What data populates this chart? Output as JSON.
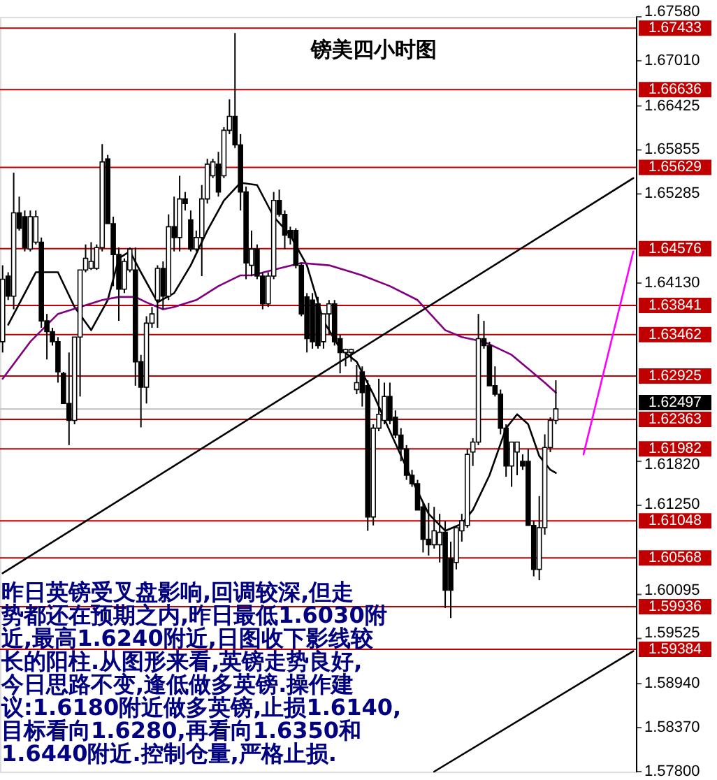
{
  "chart_data": {
    "type": "candlestick",
    "title": "镑美四小时图",
    "categories": [
      null,
      null,
      null,
      null,
      null,
      null,
      null,
      null,
      null,
      null,
      null,
      null,
      null,
      null,
      null,
      null,
      null,
      null,
      null,
      null,
      null,
      null,
      null,
      null,
      null,
      null,
      null,
      null,
      null,
      null,
      null,
      null,
      null,
      null,
      null,
      null,
      null,
      null,
      null,
      null,
      null,
      null,
      null,
      null,
      null,
      null,
      null,
      null,
      null,
      null,
      null,
      null,
      null,
      null,
      null,
      null,
      null,
      null,
      null,
      null,
      null,
      null,
      null,
      null,
      null,
      null,
      null,
      null,
      null,
      null,
      null,
      null,
      null,
      null,
      null,
      null,
      null,
      null,
      null,
      null,
      null,
      null,
      null,
      null,
      null,
      null,
      null,
      null,
      null,
      null,
      null,
      null,
      null,
      null,
      null,
      null,
      null,
      null,
      null,
      null,
      null,
      null,
      null,
      null,
      null,
      null,
      null,
      null,
      null,
      null,
      null,
      null,
      null,
      null,
      null
    ],
    "ohlc": [
      [
        1.6337,
        1.6436,
        1.6323,
        1.6418
      ],
      [
        1.6422,
        1.6427,
        1.6391,
        1.6396
      ],
      [
        1.6396,
        1.6556,
        1.6379,
        1.6504
      ],
      [
        1.6504,
        1.6525,
        1.6481,
        1.6484
      ],
      [
        1.6499,
        1.6507,
        1.6454,
        1.6459
      ],
      [
        1.6457,
        1.6507,
        1.6454,
        1.6499
      ],
      [
        1.6466,
        1.6507,
        1.6463,
        1.6499
      ],
      [
        1.6466,
        1.6472,
        1.6355,
        1.6364
      ],
      [
        1.6364,
        1.6373,
        1.6314,
        1.635
      ],
      [
        1.635,
        1.6355,
        1.6332,
        1.6337
      ],
      [
        1.6337,
        1.6343,
        1.6284,
        1.6298
      ],
      [
        1.6296,
        1.6298,
        1.6257,
        1.6257
      ],
      [
        1.6257,
        1.6323,
        1.6203,
        1.6235
      ],
      [
        1.6235,
        1.6343,
        1.623,
        1.6343
      ],
      [
        1.6343,
        1.643,
        1.6266,
        1.643
      ],
      [
        1.643,
        1.6463,
        1.6427,
        1.6445
      ],
      [
        1.6432,
        1.6466,
        1.643,
        1.6441
      ],
      [
        1.6432,
        1.6463,
        1.643,
        1.6459
      ],
      [
        1.6459,
        1.6593,
        1.6454,
        1.657
      ],
      [
        1.6574,
        1.6579,
        1.649,
        1.649
      ],
      [
        1.649,
        1.6499,
        1.6409,
        1.645
      ],
      [
        1.645,
        1.6459,
        1.6364,
        1.6405
      ],
      [
        1.6405,
        1.6445,
        1.64,
        1.6441
      ],
      [
        1.643,
        1.6459,
        1.6427,
        1.6457
      ],
      [
        1.643,
        1.6459,
        1.628,
        1.6311
      ],
      [
        1.6311,
        1.632,
        1.6226,
        1.6278
      ],
      [
        1.6278,
        1.637,
        1.6257,
        1.6361
      ],
      [
        1.6361,
        1.6382,
        1.6355,
        1.6373
      ],
      [
        1.6391,
        1.6436,
        1.6355,
        1.6432
      ],
      [
        1.6432,
        1.6441,
        1.6379,
        1.6396
      ],
      [
        1.6396,
        1.6502,
        1.6391,
        1.6486
      ],
      [
        1.6486,
        1.6525,
        1.6454,
        1.6472
      ],
      [
        1.6472,
        1.6552,
        1.6454,
        1.6522
      ],
      [
        1.6522,
        1.6531,
        1.6507,
        1.6516
      ],
      [
        1.6495,
        1.6507,
        1.6454,
        1.6457
      ],
      [
        1.6457,
        1.6481,
        1.6454,
        1.6472
      ],
      [
        1.6472,
        1.654,
        1.6422,
        1.6522
      ],
      [
        1.6522,
        1.6574,
        1.6516,
        1.6567
      ],
      [
        1.6552,
        1.6574,
        1.6549,
        1.657
      ],
      [
        1.6567,
        1.6583,
        1.6525,
        1.6531
      ],
      [
        1.6552,
        1.6615,
        1.6549,
        1.6611
      ],
      [
        1.6611,
        1.6651,
        1.6606,
        1.6629
      ],
      [
        1.6629,
        1.6737,
        1.6588,
        1.6592
      ],
      [
        1.6592,
        1.6606,
        1.6507,
        1.6531
      ],
      [
        1.6531,
        1.6538,
        1.6418,
        1.6439
      ],
      [
        1.6436,
        1.6481,
        1.6422,
        1.6457
      ],
      [
        1.6457,
        1.6463,
        1.6418,
        1.6422
      ],
      [
        1.6422,
        1.6427,
        1.6379,
        1.6386
      ],
      [
        1.6386,
        1.6427,
        1.6382,
        1.6422
      ],
      [
        1.6422,
        1.6531,
        1.6418,
        1.652
      ],
      [
        1.652,
        1.6534,
        1.6499,
        1.6502
      ],
      [
        1.6502,
        1.6507,
        1.6457,
        1.6475
      ],
      [
        1.6481,
        1.6486,
        1.6463,
        1.6472
      ],
      [
        1.6481,
        1.6484,
        1.6432,
        1.6436
      ],
      [
        1.6436,
        1.6439,
        1.637,
        1.6373
      ],
      [
        1.6395,
        1.64,
        1.6323,
        1.6341
      ],
      [
        1.6391,
        1.64,
        1.6328,
        1.6337
      ],
      [
        1.6386,
        1.6395,
        1.6328,
        1.6332
      ],
      [
        1.6337,
        1.6373,
        1.6328,
        1.6373
      ],
      [
        1.6373,
        1.6391,
        1.6346,
        1.6386
      ],
      [
        1.6386,
        1.6391,
        1.6332,
        1.6337
      ],
      [
        1.6341,
        1.6346,
        1.6296,
        1.6323
      ],
      [
        1.6323,
        1.6328,
        1.6305,
        1.6327
      ],
      [
        1.6323,
        1.6328,
        1.6311,
        1.6327
      ],
      [
        1.6275,
        1.6307,
        1.6269,
        1.6284
      ],
      [
        1.6298,
        1.6305,
        1.6253,
        1.6271
      ],
      [
        1.628,
        1.6287,
        1.6092,
        1.611
      ],
      [
        1.611,
        1.623,
        1.6099,
        1.6225
      ],
      [
        1.6225,
        1.6289,
        1.6221,
        1.6243
      ],
      [
        1.6235,
        1.6284,
        1.623,
        1.6266
      ],
      [
        1.6266,
        1.6284,
        1.623,
        1.6235
      ],
      [
        1.6239,
        1.6248,
        1.6212,
        1.6216
      ],
      [
        1.6216,
        1.6225,
        1.6182,
        1.6198
      ],
      [
        1.6198,
        1.6203,
        1.6158,
        1.6164
      ],
      [
        1.6164,
        1.6171,
        1.6149,
        1.6153
      ],
      [
        1.6153,
        1.6158,
        1.6119,
        1.6119
      ],
      [
        1.6123,
        1.6128,
        1.6064,
        1.6081
      ],
      [
        1.6081,
        1.6128,
        1.606,
        1.6074
      ],
      [
        1.6074,
        1.6123,
        1.6069,
        1.6092
      ],
      [
        1.6074,
        1.6114,
        1.6051,
        1.609
      ],
      [
        1.609,
        1.6105,
        1.5992,
        1.6015
      ],
      [
        1.6056,
        1.6078,
        1.5979,
        1.6015
      ],
      [
        1.6051,
        1.6096,
        1.6042,
        1.6096
      ],
      [
        1.6092,
        1.6114,
        1.6078,
        1.6105
      ],
      [
        1.6099,
        1.6198,
        1.6096,
        1.6191
      ],
      [
        1.6194,
        1.6212,
        1.6176,
        1.6207
      ],
      [
        1.6207,
        1.6373,
        1.6203,
        1.6341
      ],
      [
        1.6341,
        1.6364,
        1.6328,
        1.6332
      ],
      [
        1.6332,
        1.6337,
        1.628,
        1.628
      ],
      [
        1.628,
        1.6305,
        1.6266,
        1.6269
      ],
      [
        1.6269,
        1.6275,
        1.6217,
        1.6225
      ],
      [
        1.6225,
        1.623,
        1.6162,
        1.6176
      ],
      [
        1.6176,
        1.6207,
        1.6149,
        1.6207
      ],
      [
        1.6194,
        1.6207,
        1.6164,
        1.6207
      ],
      [
        1.6182,
        1.6191,
        1.6171,
        1.6176
      ],
      [
        1.6182,
        1.6198,
        1.6099,
        1.6099
      ],
      [
        1.6099,
        1.6105,
        1.6033,
        1.6042
      ],
      [
        1.6042,
        1.6137,
        1.6028,
        1.6096
      ],
      [
        1.6096,
        1.6217,
        1.6087,
        1.62
      ],
      [
        1.62,
        1.6239,
        1.6194,
        1.6235
      ],
      [
        1.6235,
        1.6287,
        1.623,
        1.625
      ],
      null,
      null,
      null,
      null,
      null,
      null,
      null,
      null,
      null,
      null,
      null,
      null,
      null,
      null
    ],
    "series": [
      {
        "type": "line",
        "color": "#000000",
        "values": [
          null,
          1.6359,
          null,
          null,
          null,
          null,
          1.6427,
          null,
          null,
          null,
          1.6427,
          null,
          null,
          1.6382,
          null,
          null,
          1.6352,
          null,
          null,
          1.6391,
          null,
          1.6445,
          null,
          1.6454,
          null,
          1.6427,
          null,
          null,
          1.6388,
          null,
          null,
          1.64,
          null,
          null,
          1.6436,
          null,
          null,
          1.6481,
          null,
          null,
          1.652,
          null,
          null,
          1.6543,
          null,
          null,
          1.654,
          null,
          null,
          1.6499,
          null,
          null,
          1.6475,
          null,
          null,
          1.6436,
          null,
          null,
          1.6364,
          null,
          null,
          1.6328,
          null,
          null,
          1.6311,
          null,
          null,
          1.6269,
          null,
          null,
          1.6221,
          null,
          null,
          null,
          1.6158,
          null,
          null,
          1.6114,
          null,
          null,
          1.6092,
          null,
          null,
          1.6101,
          null,
          1.6119,
          null,
          null,
          1.6164,
          null,
          null,
          1.6225,
          null,
          1.6243,
          null,
          1.623,
          null,
          1.6189,
          null,
          1.6171,
          1.6167,
          null,
          null,
          null,
          null,
          null,
          null,
          null,
          null,
          null,
          null,
          null,
          null,
          null,
          null
        ]
      },
      {
        "type": "line",
        "color": "#800080",
        "values": [
          1.6289,
          null,
          null,
          null,
          null,
          1.6337,
          null,
          null,
          null,
          null,
          1.6373,
          null,
          null,
          null,
          1.6382,
          null,
          null,
          null,
          1.6391,
          null,
          null,
          1.6395,
          null,
          null,
          1.6395,
          null,
          1.6388,
          null,
          null,
          1.6379,
          null,
          1.6382,
          null,
          null,
          null,
          1.6391,
          null,
          null,
          null,
          1.6409,
          null,
          null,
          null,
          1.6423,
          null,
          1.6423,
          null,
          null,
          null,
          null,
          1.6432,
          null,
          null,
          null,
          1.6439,
          null,
          null,
          null,
          null,
          1.6436,
          null,
          null,
          null,
          null,
          null,
          1.6423,
          null,
          null,
          null,
          null,
          1.6409,
          null,
          null,
          null,
          null,
          1.6391,
          null,
          null,
          null,
          null,
          1.6352,
          null,
          null,
          1.6343,
          null,
          null,
          null,
          1.6337,
          null,
          null,
          null,
          null,
          1.632,
          null,
          null,
          1.6302,
          null,
          null,
          1.6284,
          null,
          1.6271,
          null,
          null,
          null,
          null,
          null,
          null,
          null,
          null,
          null,
          null,
          null,
          null,
          null,
          null
        ]
      },
      {
        "type": "line",
        "color": "#000000",
        "values": [
          1.6037,
          null,
          null,
          null,
          null,
          null,
          null,
          null,
          null,
          null,
          null,
          null,
          null,
          null,
          null,
          null,
          null,
          null,
          null,
          null,
          null,
          null,
          null,
          null,
          null,
          null,
          null,
          null,
          null,
          null,
          null,
          null,
          null,
          null,
          null,
          null,
          null,
          null,
          null,
          null,
          null,
          null,
          null,
          null,
          null,
          null,
          null,
          null,
          null,
          null,
          null,
          null,
          null,
          null,
          null,
          null,
          null,
          null,
          null,
          null,
          null,
          null,
          null,
          null,
          null,
          null,
          null,
          null,
          null,
          null,
          null,
          null,
          null,
          null,
          null,
          null,
          null,
          null,
          null,
          null,
          null,
          null,
          null,
          null,
          null,
          null,
          null,
          null,
          null,
          null,
          null,
          null,
          null,
          null,
          null,
          null,
          null,
          null,
          null,
          null,
          null,
          null,
          null,
          null,
          null,
          null,
          null,
          null,
          null,
          null,
          null,
          null,
          null,
          null,
          1.6549
        ]
      },
      {
        "type": "line",
        "color": "#000000",
        "values": [
          null,
          null,
          null,
          null,
          null,
          null,
          null,
          null,
          null,
          null,
          null,
          null,
          null,
          null,
          null,
          null,
          null,
          null,
          null,
          null,
          null,
          null,
          null,
          null,
          null,
          null,
          null,
          null,
          null,
          null,
          null,
          null,
          null,
          null,
          null,
          null,
          null,
          null,
          null,
          null,
          null,
          null,
          null,
          null,
          null,
          null,
          null,
          null,
          null,
          null,
          null,
          null,
          null,
          null,
          null,
          null,
          null,
          null,
          null,
          null,
          null,
          null,
          null,
          null,
          null,
          null,
          null,
          null,
          null,
          null,
          null,
          null,
          null,
          null,
          null,
          null,
          null,
          null,
          1.578,
          null,
          null,
          null,
          null,
          null,
          null,
          null,
          null,
          null,
          null,
          null,
          null,
          null,
          null,
          null,
          null,
          null,
          null,
          null,
          null,
          null,
          null,
          null,
          null,
          null,
          null,
          null,
          null,
          null,
          null,
          null,
          null,
          null,
          null,
          null,
          1.5936
        ]
      },
      {
        "type": "line",
        "color": "#ff00ff",
        "values": [
          null,
          null,
          null,
          null,
          null,
          null,
          null,
          null,
          null,
          null,
          null,
          null,
          null,
          null,
          null,
          null,
          null,
          null,
          null,
          null,
          null,
          null,
          null,
          null,
          null,
          null,
          null,
          null,
          null,
          null,
          null,
          null,
          null,
          null,
          null,
          null,
          null,
          null,
          null,
          null,
          null,
          null,
          null,
          null,
          null,
          null,
          null,
          null,
          null,
          null,
          null,
          null,
          null,
          null,
          null,
          null,
          null,
          null,
          null,
          null,
          null,
          null,
          null,
          null,
          null,
          null,
          null,
          null,
          null,
          null,
          null,
          null,
          null,
          null,
          null,
          null,
          null,
          null,
          null,
          null,
          null,
          null,
          null,
          null,
          null,
          null,
          null,
          null,
          null,
          null,
          null,
          null,
          null,
          null,
          null,
          null,
          null,
          null,
          null,
          null,
          null,
          null,
          null,
          null,
          null,
          1.6191,
          null,
          null,
          null,
          null,
          null,
          null,
          null,
          null,
          1.6454
        ]
      }
    ],
    "ylim": [
      1.578,
      1.6758
    ],
    "yticks": [
      {
        "value": 1.578,
        "label": "1.57800"
      },
      {
        "value": 1.5837,
        "label": "1.58370"
      },
      {
        "value": 1.5894,
        "label": "1.58940"
      },
      {
        "value": 1.59525,
        "label": "1.59525"
      },
      {
        "value": 1.60095,
        "label": "1.60095"
      },
      {
        "value": 1.6125,
        "label": "1.61250"
      },
      {
        "value": 1.6182,
        "label": "1.61820"
      },
      {
        "value": 1.6413,
        "label": "1.64130"
      },
      {
        "value": 1.65285,
        "label": "1.65285"
      },
      {
        "value": 1.65855,
        "label": "1.65855"
      },
      {
        "value": 1.66425,
        "label": "1.66425"
      },
      {
        "value": 1.6701,
        "label": "1.67010"
      },
      {
        "value": 1.6758,
        "label": "1.67580"
      }
    ],
    "tick_labels": "y",
    "ref_lines": [
      {
        "axis": "y",
        "value": 1.67433,
        "label": "1.67433",
        "color": "#c00000"
      },
      {
        "axis": "y",
        "value": 1.66636,
        "label": "1.66636",
        "color": "#c00000"
      },
      {
        "axis": "y",
        "value": 1.65629,
        "label": "1.65629",
        "color": "#c00000"
      },
      {
        "axis": "y",
        "value": 1.64576,
        "label": "1.64576",
        "color": "#c00000"
      },
      {
        "axis": "y",
        "value": 1.63841,
        "label": "1.63841",
        "color": "#c00000"
      },
      {
        "axis": "y",
        "value": 1.63462,
        "label": "1.63462",
        "color": "#c00000"
      },
      {
        "axis": "y",
        "value": 1.62925,
        "label": "1.62925",
        "color": "#c00000"
      },
      {
        "axis": "y",
        "value": 1.62497,
        "label": "1.62497",
        "color": "#c0c0c0"
      },
      {
        "axis": "y",
        "value": 1.62363,
        "label": "1.62363",
        "color": "#c00000"
      },
      {
        "axis": "y",
        "value": 1.61982,
        "label": "1.61982",
        "color": "#c00000"
      },
      {
        "axis": "y",
        "value": 1.61048,
        "label": "1.61048",
        "color": "#c00000"
      },
      {
        "axis": "y",
        "value": 1.60568,
        "label": "1.60568",
        "color": "#c00000"
      },
      {
        "axis": "y",
        "value": 1.59936,
        "label": "1.59936",
        "color": "#c00000"
      },
      {
        "axis": "y",
        "value": 1.59384,
        "label": "1.59384",
        "color": "#c00000"
      }
    ],
    "annotations": [
      "昨日英镑受叉盘影响,回调较深,但走势都还在预期之内,昨日最低1.6030附近,最高1.6240附近,日图收下影线较长的阳柱.从图形来看,英镑走势良好,今日思路不变,逢低做多英镑.操作建议:1.6180附近做多英镑,止损1.6140,目标看向1.6280,再看向1.6350和1.6440附近.控制仓量,严格止损."
    ],
    "grid": false
  }
}
